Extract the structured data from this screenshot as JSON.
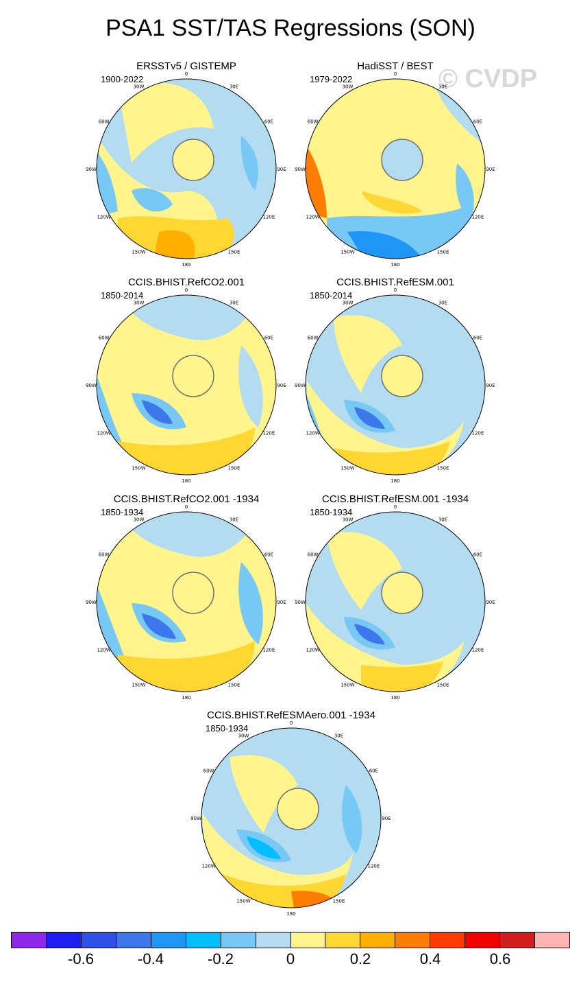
{
  "title": "PSA1 SST/TAS Regressions (SON)",
  "watermark": "© CVDP",
  "colors": {
    "coast": "#6e6e6e",
    "frame": "#000000"
  },
  "longitude_labels": [
    "0",
    "30E",
    "60E",
    "90E",
    "120E",
    "150E",
    "180",
    "150W",
    "120W",
    "90W",
    "60W",
    "30W"
  ],
  "panels": [
    {
      "title": "ERSSTv5 / GISTEMP",
      "period": "1900-2022",
      "base_color": "#b4dcf0"
    },
    {
      "title": "HadiSST / BEST",
      "period": "1979-2022",
      "base_color": "#fff58c"
    },
    {
      "title": "CCIS.BHIST.RefCO2.001",
      "period": "1850-2014",
      "base_color": "#fff58c"
    },
    {
      "title": "CCIS.BHIST.RefESM.001",
      "period": "1850-2014",
      "base_color": "#b4dcf0"
    },
    {
      "title": "CCIS.BHIST.RefCO2.001 -1934",
      "period": "1850-1934",
      "base_color": "#fff58c"
    },
    {
      "title": "CCIS.BHIST.RefESM.001 -1934",
      "period": "1850-1934",
      "base_color": "#b4dcf0"
    },
    {
      "title": "CCIS.BHIST.RefESMAero.001 -1934",
      "period": "1850-1934",
      "base_color": "#b4dcf0"
    }
  ],
  "colorbar": {
    "colors": [
      "#8c28e6",
      "#1e1ef0",
      "#2d50e6",
      "#3c78eb",
      "#1e96f5",
      "#00beff",
      "#78c8f5",
      "#b4dcf0",
      "#fff58c",
      "#ffd732",
      "#ffaf00",
      "#ff7d00",
      "#ff3c00",
      "#f00000",
      "#d21e1e",
      "#ffb4b4"
    ],
    "labels": [
      "-0.6",
      "-0.4",
      "-0.2",
      "0",
      "0.2",
      "0.4",
      "0.6"
    ]
  }
}
